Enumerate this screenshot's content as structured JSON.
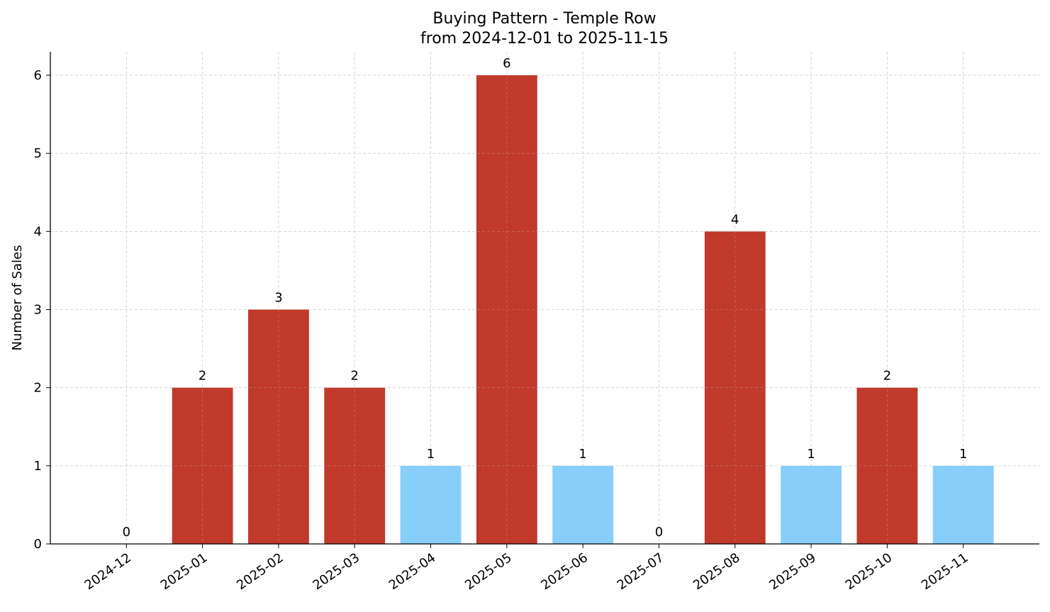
{
  "chart_data": {
    "type": "bar",
    "title": "Buying Pattern - Temple Row",
    "subtitle": "from 2024-12-01 to 2025-11-15",
    "xlabel": "",
    "ylabel": "Number of Sales",
    "categories": [
      "2024-12",
      "2025-01",
      "2025-02",
      "2025-03",
      "2025-04",
      "2025-05",
      "2025-06",
      "2025-07",
      "2025-08",
      "2025-09",
      "2025-10",
      "2025-11"
    ],
    "values": [
      0,
      2,
      3,
      2,
      1,
      6,
      1,
      0,
      4,
      1,
      2,
      1
    ],
    "bar_colors": [
      "#c0392b",
      "#c0392b",
      "#c0392b",
      "#c0392b",
      "#87cefa",
      "#c0392b",
      "#87cefa",
      "#c0392b",
      "#c0392b",
      "#87cefa",
      "#c0392b",
      "#87cefa"
    ],
    "data_labels": [
      "0",
      "2",
      "3",
      "2",
      "1",
      "6",
      "1",
      "0",
      "4",
      "1",
      "2",
      "1"
    ],
    "yticks": [
      "0",
      "1",
      "2",
      "3",
      "4",
      "5",
      "6"
    ],
    "ylim": [
      0,
      6.3
    ],
    "grid": true,
    "legend": "none"
  }
}
